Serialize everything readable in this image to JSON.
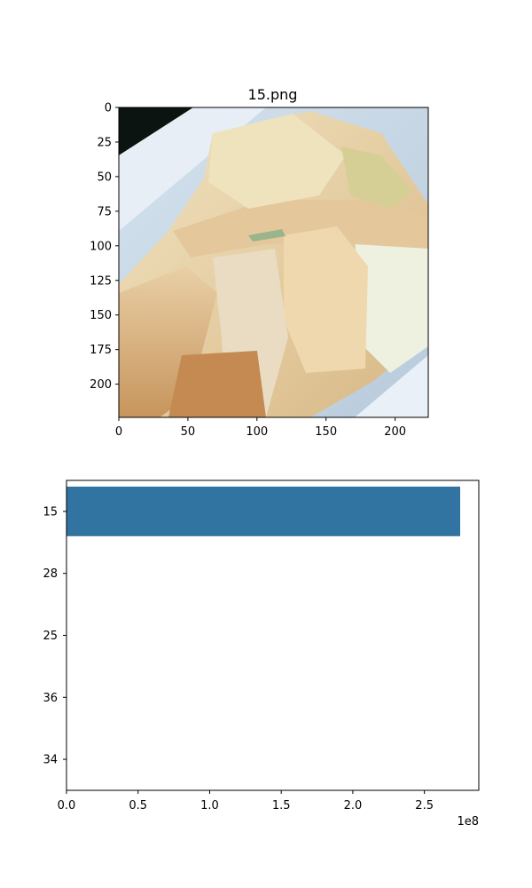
{
  "chart_data": [
    {
      "type": "image",
      "title": "15.png",
      "xticks": [
        0,
        50,
        100,
        150,
        200
      ],
      "yticks": [
        0,
        25,
        50,
        75,
        100,
        125,
        150,
        175,
        200
      ],
      "xlim": [
        0,
        224
      ],
      "ylim": [
        224,
        0
      ],
      "image_description_colors": {
        "tray": "#c9dbe8",
        "cabbage_light": "#ecdcb4",
        "cabbage_mid": "#d9b984",
        "cabbage_dark": "#c49460",
        "dark_corner": "#0b1410"
      }
    },
    {
      "type": "bar",
      "orientation": "horizontal",
      "categories": [
        "15",
        "28",
        "25",
        "36",
        "34"
      ],
      "values": [
        275000000,
        0,
        0,
        0,
        0
      ],
      "xlim": [
        0,
        288000000
      ],
      "xticks": [
        0,
        0.5,
        1.0,
        1.5,
        2.0,
        2.5
      ],
      "xtick_labels": [
        "0.0",
        "0.5",
        "1.0",
        "1.5",
        "2.0",
        "2.5"
      ],
      "x_offset_label": "1e8",
      "bar_color": "#3274a1"
    }
  ]
}
